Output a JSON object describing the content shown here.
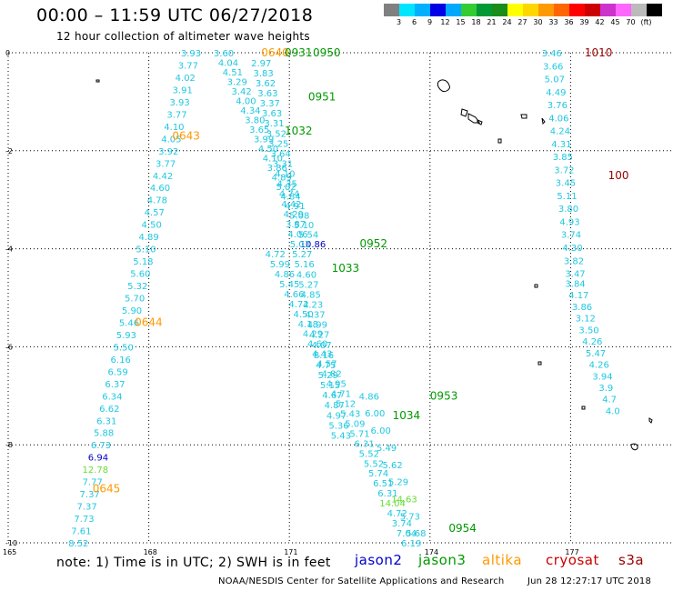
{
  "title": "00:00 – 11:59 UTC 06/27/2018",
  "subtitle": "12 hour collection of altimeter wave heights",
  "legend": {
    "colors": [
      "#808080",
      "#00e5ff",
      "#00b0ff",
      "#0000e6",
      "#00a8ff",
      "#33cc33",
      "#009933",
      "#1a8c1a",
      "#ffff00",
      "#ffd700",
      "#ff9900",
      "#ff6600",
      "#ff0000",
      "#cc0000",
      "#cc33cc",
      "#ff66ff",
      "#bbbbbb",
      "#000000"
    ],
    "labels": [
      "3",
      "6",
      "9",
      "12",
      "15",
      "18",
      "21",
      "24",
      "27",
      "30",
      "33",
      "36",
      "39",
      "42",
      "45",
      "70",
      "(ft)"
    ]
  },
  "axis": {
    "x_ticks": [
      {
        "v": 165,
        "l": "165"
      },
      {
        "v": 168,
        "l": "168"
      },
      {
        "v": 171,
        "l": "171"
      },
      {
        "v": 174,
        "l": "174"
      },
      {
        "v": 177,
        "l": "177"
      }
    ],
    "y_ticks": [
      {
        "v": 0,
        "l": "0"
      },
      {
        "v": -2,
        "l": "-2"
      },
      {
        "v": -4,
        "l": "-4"
      },
      {
        "v": -6,
        "l": "-6"
      },
      {
        "v": -8,
        "l": "-8"
      },
      {
        "v": -10,
        "l": "-10"
      }
    ]
  },
  "track_colors": {
    "jason3": "#1fc8e0",
    "blue": "#0000cc",
    "light_green": "#66dd33"
  },
  "time_labels": [
    {
      "t": "0640",
      "c": "#ff9900",
      "lon": 170.4,
      "lat": 0.0
    },
    {
      "t": "0931",
      "c": "#009900",
      "lon": 170.9,
      "lat": 0.0
    },
    {
      "t": "0950",
      "c": "#009900",
      "lon": 171.5,
      "lat": 0.0
    },
    {
      "t": "0951",
      "c": "#009900",
      "lon": 171.4,
      "lat": -0.9
    },
    {
      "t": "1032",
      "c": "#009900",
      "lon": 170.9,
      "lat": -1.6
    },
    {
      "t": "0643",
      "c": "#ff9900",
      "lon": 168.5,
      "lat": -1.7
    },
    {
      "t": "0952",
      "c": "#009900",
      "lon": 172.5,
      "lat": -3.9
    },
    {
      "t": "1033",
      "c": "#009900",
      "lon": 171.9,
      "lat": -4.4
    },
    {
      "t": "0644",
      "c": "#ff9900",
      "lon": 167.7,
      "lat": -5.5
    },
    {
      "t": "0953",
      "c": "#009900",
      "lon": 174.0,
      "lat": -7.0
    },
    {
      "t": "1034",
      "c": "#009900",
      "lon": 173.2,
      "lat": -7.4
    },
    {
      "t": "0645",
      "c": "#ff9900",
      "lon": 166.8,
      "lat": -8.9
    },
    {
      "t": "0954",
      "c": "#009900",
      "lon": 174.4,
      "lat": -9.7
    },
    {
      "t": "1010",
      "c": "#990000",
      "lon": 177.3,
      "lat": 0.0
    },
    {
      "t": "100",
      "c": "#990000",
      "lon": 177.8,
      "lat": -2.5
    }
  ],
  "tracks": [
    {
      "lon0": 168.9,
      "lat0": 0.0,
      "lon1": 166.5,
      "lat1": -10.0,
      "values": [
        "3.93",
        "3.77",
        "4.02",
        "3.91",
        "3.93",
        "3.77",
        "4.10",
        "4.05",
        "3.92",
        "3.77",
        "4.42",
        "4.60",
        "4.78",
        "4.57",
        "4.50",
        "4.89",
        "5.10",
        "5.18",
        "5.60",
        "5.32",
        "5.70",
        "5.90",
        "5.46",
        "5.93",
        "5.50",
        "6.16",
        "6.59",
        "6.37",
        "6.34",
        "6.62",
        "6.31",
        "5.88",
        "6.73",
        "6.94",
        "12.78",
        "7.77",
        "7.37",
        "7.37",
        "7.73",
        "7.61",
        "8.52"
      ],
      "special": {
        "33": "#0000cc",
        "34": "#66dd33"
      }
    },
    {
      "lon0": 169.6,
      "lat0": 0.0,
      "lon1": 171.5,
      "lat1": -3.9,
      "values": [
        "3.60",
        "4.04",
        "4.51",
        "3.29",
        "3.42",
        "4.00",
        "4.34",
        "3.80",
        "3.65",
        "3.99",
        "4.50",
        "4.10",
        "3.86",
        "4.89",
        "5.02",
        "4.84",
        "4.91",
        "5.08",
        "5.10",
        "5.54",
        "10.86"
      ],
      "special": {
        "20": "#0000cc"
      }
    },
    {
      "lon0": 170.4,
      "lat0": -0.2,
      "lon1": 172.1,
      "lat1": -7.8,
      "values": [
        "2.97",
        "3.83",
        "3.62",
        "3.63",
        "3.37",
        "3.63",
        "3.31",
        "3.52",
        "3.25",
        "3.64",
        "3.31",
        "4.10",
        "4.35",
        "4.74",
        "4.42",
        "4.29",
        "3.87",
        "4.06",
        "5.03",
        "5.27",
        "5.16",
        "4.60",
        "5.27",
        "4.85",
        "4.23",
        "4.37",
        "4.99",
        "4.27",
        "4.07",
        "8.16",
        "4.75",
        "5.29",
        "5.15",
        "4.67",
        "4.87",
        "4.97",
        "5.36",
        "5.43"
      ],
      "special": {}
    },
    {
      "lon0": 170.7,
      "lat0": -4.1,
      "lon1": 173.6,
      "lat1": -10.0,
      "values": [
        "4.72",
        "5.99",
        "4.86",
        "5.45",
        "4.66",
        "4.72",
        "4.50",
        "4.18",
        "4.29",
        "4.60",
        "4.43",
        "4.57",
        "4.82",
        "4.95",
        "4.71",
        "5.12",
        "5.43",
        "5.09",
        "5.71",
        "6.31",
        "5.52",
        "5.52",
        "5.74",
        "6.51",
        "6.31",
        "14.04",
        "4.72",
        "3.74",
        "7.04",
        "6.19"
      ],
      "special": {
        "25": "#66dd33"
      }
    },
    {
      "lon0": 172.7,
      "lat0": -7.0,
      "lon1": 173.7,
      "lat1": -9.8,
      "values": [
        "4.86",
        "6.00",
        "6.00",
        "5.49",
        "5.62",
        "5.29",
        "14.63",
        "5.73",
        "5.68"
      ],
      "special": {
        "6": "#66dd33"
      }
    },
    {
      "lon0": 176.6,
      "lat0": 0.0,
      "lon1": 177.1,
      "lat1": -4.5,
      "values": [
        "3.46",
        "3.66",
        "5.07",
        "4.49",
        "3.76",
        "4.06",
        "4.24",
        "4.31",
        "3.85",
        "3.72",
        "3.45",
        "5.11",
        "3.80",
        "4.93",
        "3.74",
        "4.30",
        "3.82",
        "3.47"
      ],
      "special": {}
    },
    {
      "lon0": 177.1,
      "lat0": -4.7,
      "lon1": 177.9,
      "lat1": -7.3,
      "values": [
        "3.84",
        "4.17",
        "3.86",
        "3.12",
        "3.50",
        "4.26",
        "5.47",
        "4.26",
        "3.94",
        "3.9",
        "4.7",
        "4.0"
      ],
      "special": {}
    }
  ],
  "note": "note:  1) Time is in UTC;  2) SWH is in feet",
  "satellites": [
    {
      "name": "jason2",
      "color": "#0000cc"
    },
    {
      "name": "jason3",
      "color": "#009900"
    },
    {
      "name": "altika",
      "color": "#ff9900"
    },
    {
      "name": "cryosat",
      "color": "#cc0000"
    },
    {
      "name": "s3a",
      "color": "#990000"
    }
  ],
  "credit": "NOAA/NESDIS Center for Satellite Applications and Research",
  "generated": "Jun 28 12:27:17 UTC 2018"
}
